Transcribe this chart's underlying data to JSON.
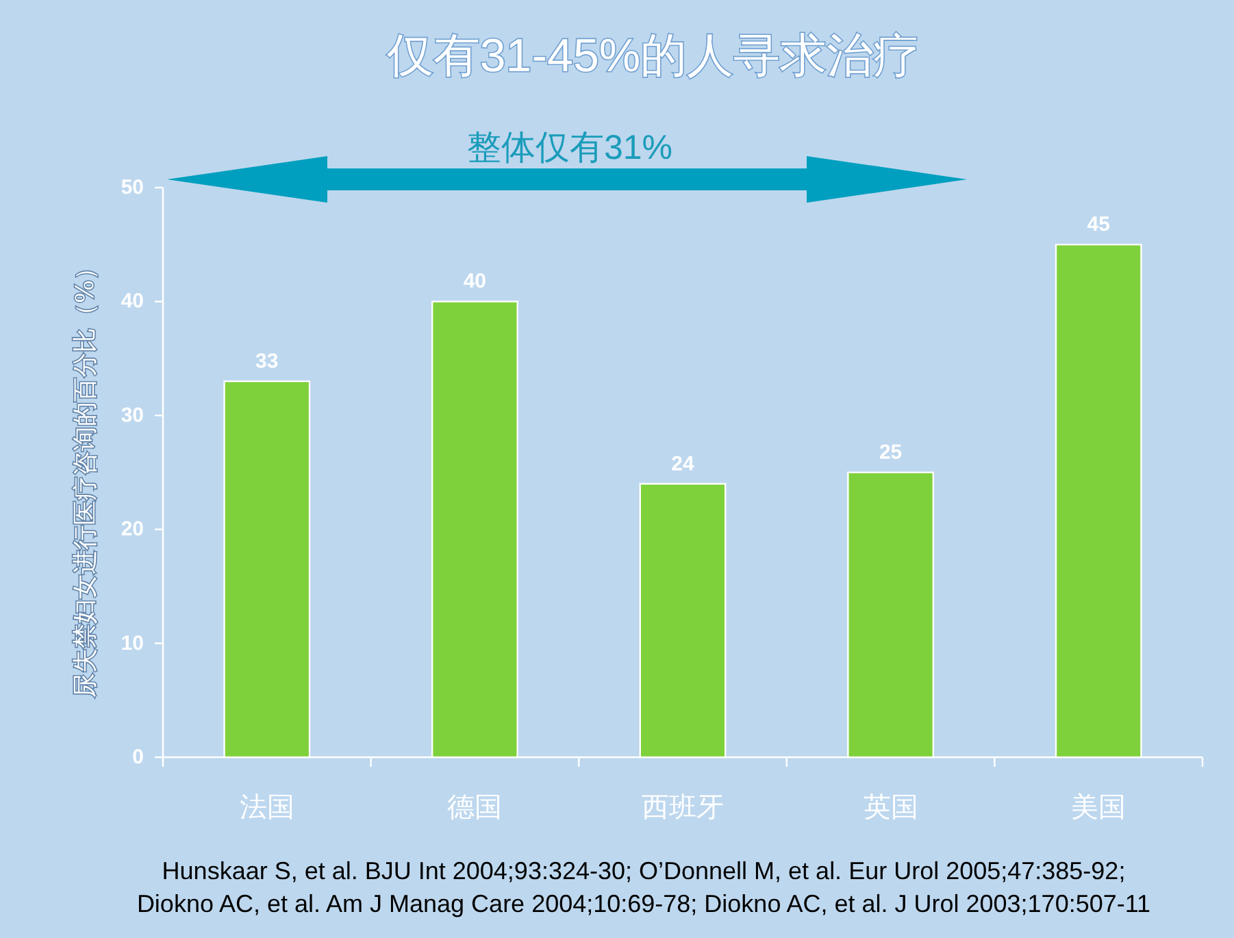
{
  "chart_data": {
    "type": "bar",
    "title": "仅有31-45%的人寻求治疗",
    "ylabel": "尿失禁妇女进行医疗咨询的百分比（%）",
    "categories": [
      "法国",
      "德国",
      "西班牙",
      "英国",
      "美国"
    ],
    "values": [
      33,
      40,
      24,
      25,
      45
    ],
    "color": "#7ed13b",
    "ylim": [
      0,
      50
    ],
    "yticks": [
      0,
      10,
      20,
      30,
      40,
      50
    ],
    "data_labels": true,
    "annotations": [
      "整体仅有31%",
      "Hunskaar S, et al. BJU Int 2004;93:324-30; O’Donnell M, et al. Eur Urol 2005;47:385-92;",
      "Diokno AC, et al. Am J Manag Care 2004;10:69-78; Diokno AC, et al. J Urol 2003;170:507-11"
    ]
  }
}
